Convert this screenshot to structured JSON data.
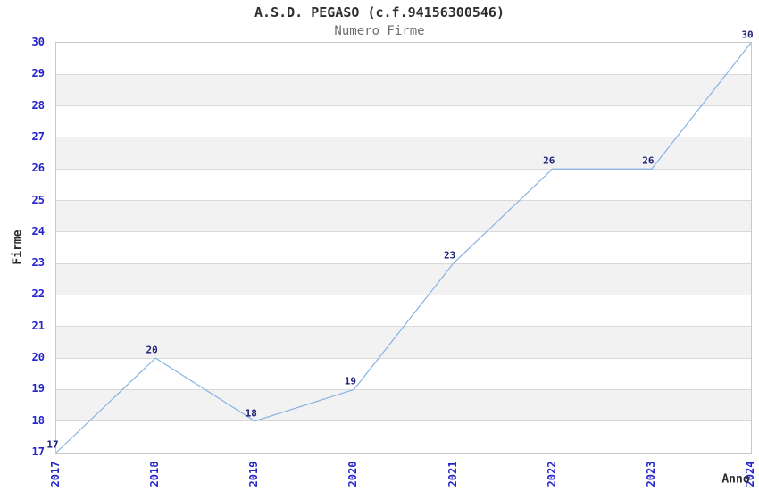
{
  "chart_data": {
    "type": "line",
    "title": "A.S.D. PEGASO (c.f.94156300546)",
    "subtitle": "Numero Firme",
    "xlabel": "Anno",
    "ylabel": "Firme",
    "categories": [
      "2017",
      "2018",
      "2019",
      "2020",
      "2021",
      "2022",
      "2023",
      "2024"
    ],
    "values": [
      17,
      20,
      18,
      19,
      23,
      26,
      26,
      30
    ],
    "data_labels": [
      "17",
      "20",
      "18",
      "19",
      "23",
      "26",
      "26",
      "30"
    ],
    "ylim": [
      17,
      30
    ],
    "ytick_step": 1,
    "yticks": [
      17,
      18,
      19,
      20,
      21,
      22,
      23,
      24,
      25,
      26,
      27,
      28,
      29,
      30
    ],
    "grid": "horizontal",
    "band_fill": "alternating-horizontal",
    "legend_position": "none",
    "colors": {
      "line": "#85b3e3",
      "tick_label": "#2424cc",
      "data_label": "#1f1f7a",
      "axis_title": "#2b2b2b",
      "title": "#2e2e2e",
      "subtitle": "#6e6e6e",
      "band_gray": "#f2f2f2",
      "band_white": "#ffffff",
      "gridline": "#d9d9d9",
      "border": "#c9c9c9",
      "background": "#ffffff"
    }
  }
}
